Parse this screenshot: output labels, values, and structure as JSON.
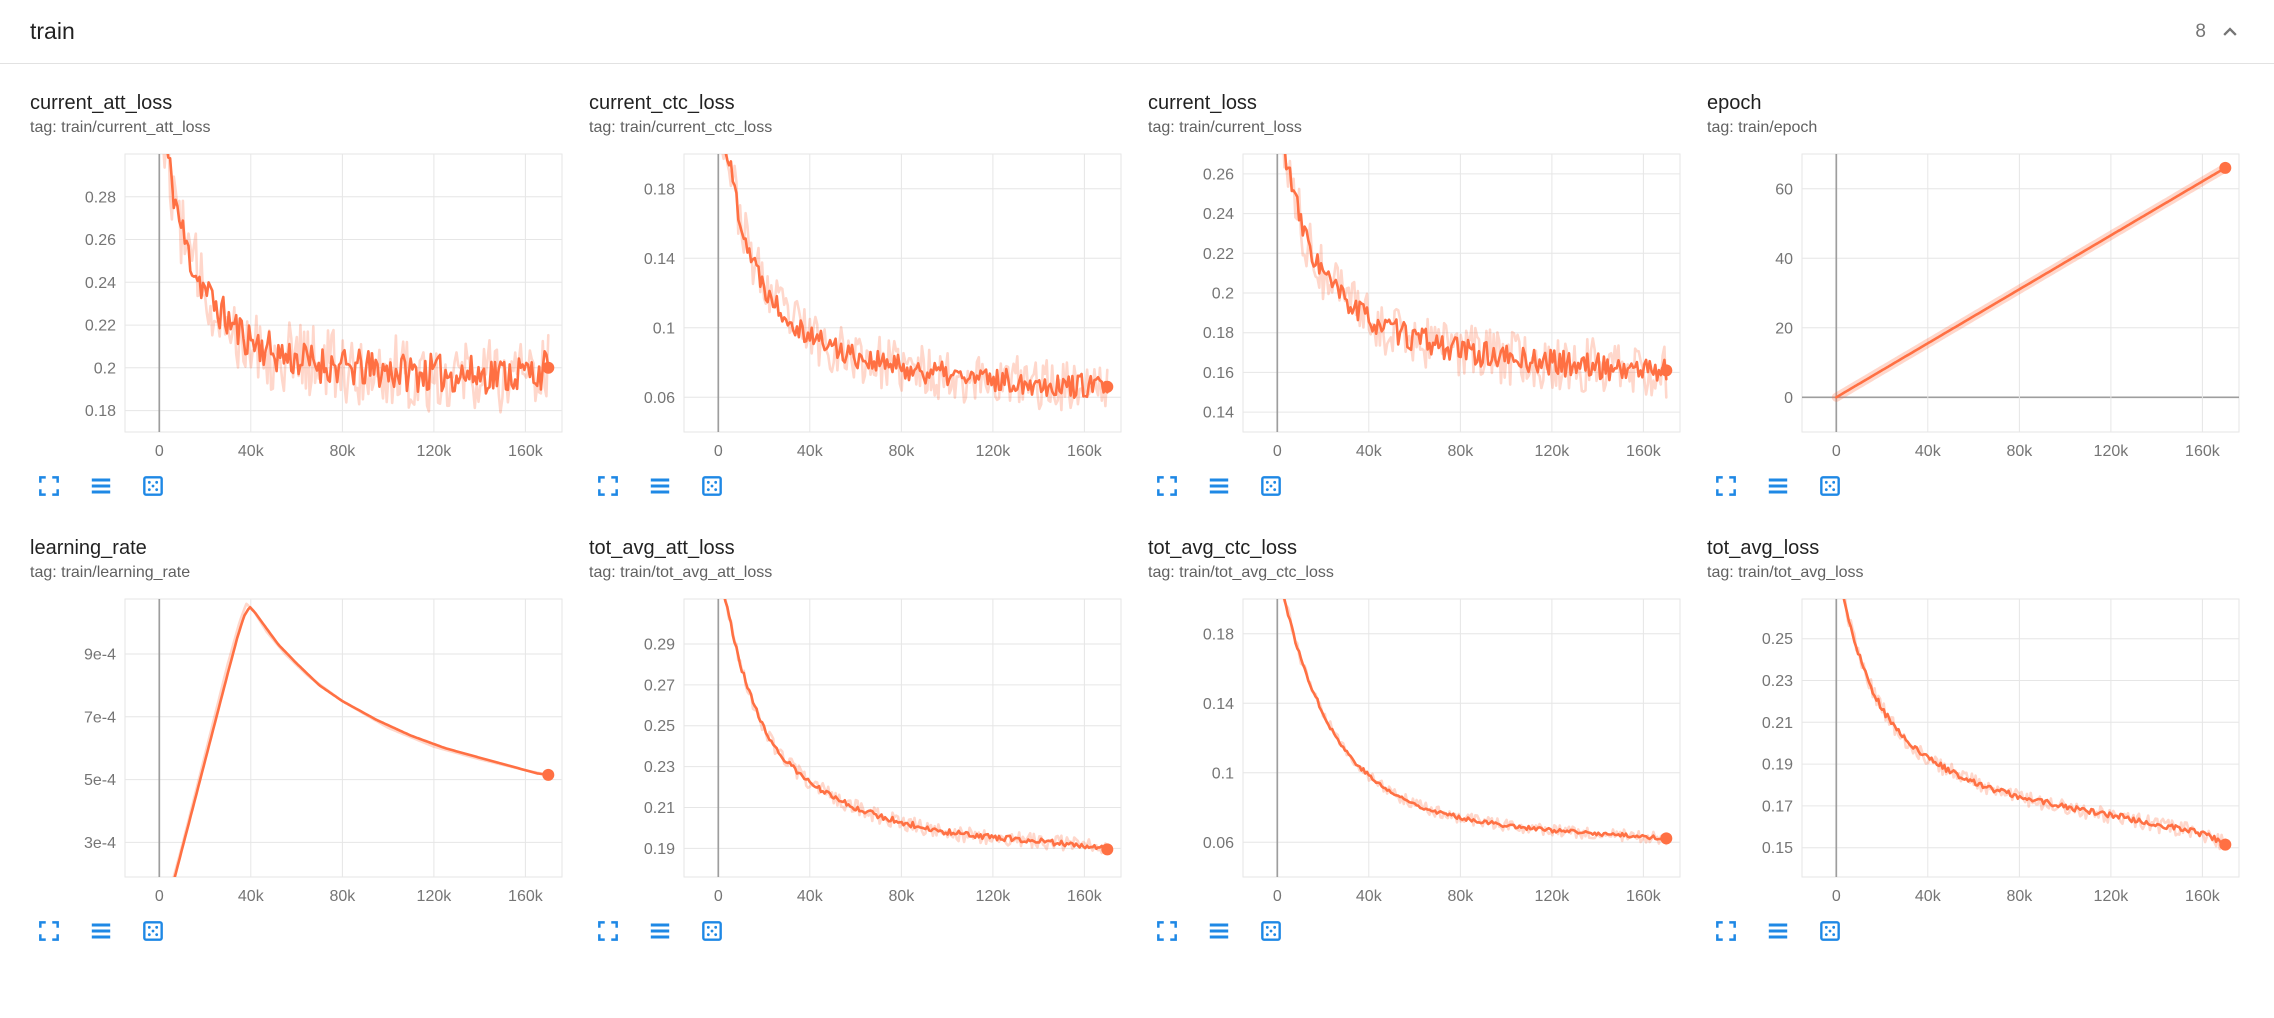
{
  "header": {
    "title": "train",
    "count": "8"
  },
  "colors": {
    "line": "#ff7043",
    "raw_opacity": 0.28,
    "icon_blue": "#1e88e5",
    "grid": "#e6e6e6",
    "zero_line": "#9e9e9e",
    "axis_text": "#757575"
  },
  "toolbar": {
    "expand_name": "expand-chart",
    "lines_name": "toggle-y-axis",
    "fit_name": "fit-domain-to-data"
  },
  "chart_data": [
    {
      "type": "line",
      "title": "current_att_loss",
      "tag_label": "tag: train/current_att_loss",
      "x_domain": [
        -15000,
        176000
      ],
      "y_domain": [
        0.17,
        0.3
      ],
      "x_tick_values": [
        0,
        40000,
        80000,
        120000,
        160000
      ],
      "x_tick_labels": [
        "0",
        "40k",
        "80k",
        "120k",
        "160k"
      ],
      "y_tick_values": [
        0.18,
        0.2,
        0.22,
        0.24,
        0.26,
        0.28
      ],
      "y_tick_labels": [
        "0.18",
        "0.2",
        "0.22",
        "0.24",
        "0.26",
        "0.28"
      ],
      "trend": [
        [
          1500,
          0.315
        ],
        [
          4000,
          0.296
        ],
        [
          6000,
          0.284
        ],
        [
          9000,
          0.268
        ],
        [
          12000,
          0.256
        ],
        [
          15000,
          0.247
        ],
        [
          18000,
          0.24
        ],
        [
          22000,
          0.233
        ],
        [
          26000,
          0.227
        ],
        [
          30000,
          0.222
        ],
        [
          35000,
          0.217
        ],
        [
          40000,
          0.213
        ],
        [
          50000,
          0.207
        ],
        [
          60000,
          0.204
        ],
        [
          70000,
          0.202
        ],
        [
          80000,
          0.2
        ],
        [
          95000,
          0.199
        ],
        [
          110000,
          0.198
        ],
        [
          130000,
          0.197
        ],
        [
          150000,
          0.197
        ],
        [
          165000,
          0.198
        ],
        [
          170000,
          0.2
        ]
      ],
      "noise": 0.009,
      "raw_noise": 0.018,
      "seed": 11,
      "end_dot": true
    },
    {
      "type": "line",
      "title": "current_ctc_loss",
      "tag_label": "tag: train/current_ctc_loss",
      "x_domain": [
        -15000,
        176000
      ],
      "y_domain": [
        0.04,
        0.2
      ],
      "x_tick_values": [
        0,
        40000,
        80000,
        120000,
        160000
      ],
      "x_tick_labels": [
        "0",
        "40k",
        "80k",
        "120k",
        "160k"
      ],
      "y_tick_values": [
        0.06,
        0.1,
        0.14,
        0.18
      ],
      "y_tick_labels": [
        "0.06",
        "0.1",
        "0.14",
        "0.18"
      ],
      "trend": [
        [
          1500,
          0.215
        ],
        [
          4000,
          0.2
        ],
        [
          6000,
          0.187
        ],
        [
          9000,
          0.167
        ],
        [
          12000,
          0.151
        ],
        [
          15000,
          0.139
        ],
        [
          18000,
          0.13
        ],
        [
          22000,
          0.12
        ],
        [
          26000,
          0.113
        ],
        [
          30000,
          0.107
        ],
        [
          35000,
          0.101
        ],
        [
          40000,
          0.096
        ],
        [
          50000,
          0.089
        ],
        [
          60000,
          0.084
        ],
        [
          70000,
          0.08
        ],
        [
          80000,
          0.077
        ],
        [
          95000,
          0.074
        ],
        [
          110000,
          0.071
        ],
        [
          130000,
          0.069
        ],
        [
          150000,
          0.067
        ],
        [
          170000,
          0.066
        ]
      ],
      "noise": 0.007,
      "raw_noise": 0.015,
      "seed": 22,
      "end_dot": true
    },
    {
      "type": "line",
      "title": "current_loss",
      "tag_label": "tag: train/current_loss",
      "x_domain": [
        -15000,
        176000
      ],
      "y_domain": [
        0.13,
        0.27
      ],
      "x_tick_values": [
        0,
        40000,
        80000,
        120000,
        160000
      ],
      "x_tick_labels": [
        "0",
        "40k",
        "80k",
        "120k",
        "160k"
      ],
      "y_tick_values": [
        0.14,
        0.16,
        0.18,
        0.2,
        0.22,
        0.24,
        0.26
      ],
      "y_tick_labels": [
        "0.14",
        "0.16",
        "0.18",
        "0.2",
        "0.22",
        "0.24",
        "0.26"
      ],
      "trend": [
        [
          1500,
          0.285
        ],
        [
          4000,
          0.268
        ],
        [
          6000,
          0.256
        ],
        [
          9000,
          0.241
        ],
        [
          12000,
          0.229
        ],
        [
          15000,
          0.221
        ],
        [
          18000,
          0.214
        ],
        [
          22000,
          0.207
        ],
        [
          26000,
          0.201
        ],
        [
          30000,
          0.196
        ],
        [
          35000,
          0.191
        ],
        [
          40000,
          0.187
        ],
        [
          50000,
          0.181
        ],
        [
          60000,
          0.177
        ],
        [
          70000,
          0.174
        ],
        [
          80000,
          0.171
        ],
        [
          95000,
          0.168
        ],
        [
          110000,
          0.166
        ],
        [
          130000,
          0.164
        ],
        [
          150000,
          0.162
        ],
        [
          170000,
          0.161
        ]
      ],
      "noise": 0.0065,
      "raw_noise": 0.014,
      "seed": 33,
      "end_dot": true
    },
    {
      "type": "line",
      "title": "epoch",
      "tag_label": "tag: train/epoch",
      "x_domain": [
        -15000,
        176000
      ],
      "y_domain": [
        -10,
        70
      ],
      "x_tick_values": [
        0,
        40000,
        80000,
        120000,
        160000
      ],
      "x_tick_labels": [
        "0",
        "40k",
        "80k",
        "120k",
        "160k"
      ],
      "y_tick_values": [
        0,
        20,
        40,
        60
      ],
      "y_tick_labels": [
        "0",
        "20",
        "40",
        "60"
      ],
      "trend": [
        [
          0,
          0
        ],
        [
          170000,
          66
        ]
      ],
      "noise": 0,
      "raw_noise": 0,
      "raw_width": 9,
      "seed": 44,
      "end_dot": true
    },
    {
      "type": "line",
      "title": "learning_rate",
      "tag_label": "tag: train/learning_rate",
      "x_domain": [
        -15000,
        176000
      ],
      "y_domain": [
        0.00019,
        0.001075
      ],
      "x_tick_values": [
        0,
        40000,
        80000,
        120000,
        160000
      ],
      "x_tick_labels": [
        "0",
        "40k",
        "80k",
        "120k",
        "160k"
      ],
      "y_tick_values": [
        0.0003,
        0.0005,
        0.0007,
        0.0009
      ],
      "y_tick_labels": [
        "3e-4",
        "5e-4",
        "7e-4",
        "9e-4"
      ],
      "trend": [
        [
          0,
          2e-05
        ],
        [
          5000,
          0.00014
        ],
        [
          10000,
          0.00028
        ],
        [
          15000,
          0.00042
        ],
        [
          20000,
          0.00056
        ],
        [
          25000,
          0.0007
        ],
        [
          30000,
          0.00084
        ],
        [
          34000,
          0.00095
        ],
        [
          37000,
          0.00102
        ],
        [
          39500,
          0.00105
        ],
        [
          42000,
          0.00103
        ],
        [
          46000,
          0.00099
        ],
        [
          52000,
          0.00093
        ],
        [
          60000,
          0.00087
        ],
        [
          70000,
          0.0008
        ],
        [
          80000,
          0.00075
        ],
        [
          95000,
          0.00069
        ],
        [
          110000,
          0.00064
        ],
        [
          125000,
          0.0006
        ],
        [
          140000,
          0.00057
        ],
        [
          155000,
          0.00054
        ],
        [
          165000,
          0.00052
        ],
        [
          170000,
          0.000515
        ]
      ],
      "raw_trend": [
        [
          0,
          2e-05
        ],
        [
          10000,
          0.00029
        ],
        [
          20000,
          0.00058
        ],
        [
          30000,
          0.00087
        ],
        [
          35000,
          0.001
        ],
        [
          38000,
          0.00106
        ],
        [
          41000,
          0.00104
        ],
        [
          47000,
          0.00097
        ],
        [
          55000,
          0.0009
        ],
        [
          65000,
          0.00083
        ],
        [
          80000,
          0.00075
        ],
        [
          100000,
          0.000665
        ],
        [
          120000,
          0.000605
        ],
        [
          140000,
          0.000565
        ],
        [
          160000,
          0.00053
        ],
        [
          170000,
          0.000515
        ]
      ],
      "noise": 0,
      "raw_noise": 0,
      "seed": 55,
      "end_dot": true
    },
    {
      "type": "line",
      "title": "tot_avg_att_loss",
      "tag_label": "tag: train/tot_avg_att_loss",
      "x_domain": [
        -15000,
        176000
      ],
      "y_domain": [
        0.176,
        0.312
      ],
      "x_tick_values": [
        0,
        40000,
        80000,
        120000,
        160000
      ],
      "x_tick_labels": [
        "0",
        "40k",
        "80k",
        "120k",
        "160k"
      ],
      "y_tick_values": [
        0.19,
        0.21,
        0.23,
        0.25,
        0.27,
        0.29
      ],
      "y_tick_labels": [
        "0.19",
        "0.21",
        "0.23",
        "0.25",
        "0.27",
        "0.29"
      ],
      "trend": [
        [
          1500,
          0.32
        ],
        [
          4000,
          0.307
        ],
        [
          6000,
          0.297
        ],
        [
          8000,
          0.288
        ],
        [
          10000,
          0.279
        ],
        [
          12000,
          0.271
        ],
        [
          14000,
          0.265
        ],
        [
          16000,
          0.259
        ],
        [
          18000,
          0.254
        ],
        [
          20000,
          0.249
        ],
        [
          23000,
          0.243
        ],
        [
          26000,
          0.238
        ],
        [
          30000,
          0.232
        ],
        [
          34000,
          0.228
        ],
        [
          38000,
          0.224
        ],
        [
          42000,
          0.221
        ],
        [
          46000,
          0.218
        ],
        [
          50000,
          0.215
        ],
        [
          55000,
          0.2125
        ],
        [
          60000,
          0.21
        ],
        [
          65000,
          0.208
        ],
        [
          70000,
          0.206
        ],
        [
          75000,
          0.2045
        ],
        [
          80000,
          0.203
        ],
        [
          85000,
          0.2015
        ],
        [
          90000,
          0.2
        ],
        [
          95000,
          0.199
        ],
        [
          100000,
          0.198
        ],
        [
          110000,
          0.1965
        ],
        [
          120000,
          0.1955
        ],
        [
          130000,
          0.1945
        ],
        [
          140000,
          0.1935
        ],
        [
          150000,
          0.1925
        ],
        [
          160000,
          0.1915
        ],
        [
          165000,
          0.191
        ],
        [
          170000,
          0.1895
        ]
      ],
      "noise": 0.0014,
      "raw_noise": 0.0038,
      "seed": 66,
      "end_dot": true
    },
    {
      "type": "line",
      "title": "tot_avg_ctc_loss",
      "tag_label": "tag: train/tot_avg_ctc_loss",
      "x_domain": [
        -15000,
        176000
      ],
      "y_domain": [
        0.04,
        0.2
      ],
      "x_tick_values": [
        0,
        40000,
        80000,
        120000,
        160000
      ],
      "x_tick_labels": [
        "0",
        "40k",
        "80k",
        "120k",
        "160k"
      ],
      "y_tick_values": [
        0.06,
        0.1,
        0.14,
        0.18
      ],
      "y_tick_labels": [
        "0.06",
        "0.1",
        "0.14",
        "0.18"
      ],
      "trend": [
        [
          1500,
          0.21
        ],
        [
          3000,
          0.2
        ],
        [
          5000,
          0.19
        ],
        [
          7000,
          0.18
        ],
        [
          9000,
          0.171
        ],
        [
          11000,
          0.163
        ],
        [
          13000,
          0.156
        ],
        [
          15000,
          0.149
        ],
        [
          17000,
          0.143
        ],
        [
          19000,
          0.137
        ],
        [
          22000,
          0.129
        ],
        [
          25000,
          0.122
        ],
        [
          28000,
          0.116
        ],
        [
          31000,
          0.111
        ],
        [
          34000,
          0.106
        ],
        [
          38000,
          0.101
        ],
        [
          42000,
          0.096
        ],
        [
          46000,
          0.092
        ],
        [
          50000,
          0.0885
        ],
        [
          55000,
          0.085
        ],
        [
          60000,
          0.082
        ],
        [
          65000,
          0.0795
        ],
        [
          70000,
          0.0775
        ],
        [
          75000,
          0.0758
        ],
        [
          80000,
          0.0743
        ],
        [
          88000,
          0.0722
        ],
        [
          96000,
          0.0705
        ],
        [
          105000,
          0.069
        ],
        [
          115000,
          0.0675
        ],
        [
          125000,
          0.0663
        ],
        [
          135000,
          0.0653
        ],
        [
          148000,
          0.0643
        ],
        [
          160000,
          0.0633
        ],
        [
          170000,
          0.0622
        ]
      ],
      "noise": 0.0012,
      "raw_noise": 0.0033,
      "seed": 77,
      "end_dot": true
    },
    {
      "type": "line",
      "title": "tot_avg_loss",
      "tag_label": "tag: train/tot_avg_loss",
      "x_domain": [
        -15000,
        176000
      ],
      "y_domain": [
        0.136,
        0.269
      ],
      "x_tick_values": [
        0,
        40000,
        80000,
        120000,
        160000
      ],
      "x_tick_labels": [
        "0",
        "40k",
        "80k",
        "120k",
        "160k"
      ],
      "y_tick_values": [
        0.15,
        0.17,
        0.19,
        0.21,
        0.23,
        0.25
      ],
      "y_tick_labels": [
        "0.15",
        "0.17",
        "0.19",
        "0.21",
        "0.23",
        "0.25"
      ],
      "trend": [
        [
          1500,
          0.278
        ],
        [
          4000,
          0.266
        ],
        [
          6000,
          0.257
        ],
        [
          8000,
          0.249
        ],
        [
          10000,
          0.242
        ],
        [
          12000,
          0.236
        ],
        [
          14000,
          0.23
        ],
        [
          16000,
          0.225
        ],
        [
          18000,
          0.2205
        ],
        [
          20000,
          0.2165
        ],
        [
          23000,
          0.2115
        ],
        [
          26000,
          0.207
        ],
        [
          30000,
          0.202
        ],
        [
          34000,
          0.198
        ],
        [
          38000,
          0.1945
        ],
        [
          42000,
          0.1915
        ],
        [
          46000,
          0.189
        ],
        [
          50000,
          0.1865
        ],
        [
          55000,
          0.184
        ],
        [
          60000,
          0.1815
        ],
        [
          65000,
          0.1795
        ],
        [
          70000,
          0.1775
        ],
        [
          75000,
          0.176
        ],
        [
          80000,
          0.1745
        ],
        [
          88000,
          0.1725
        ],
        [
          96000,
          0.1705
        ],
        [
          105000,
          0.1685
        ],
        [
          115000,
          0.1665
        ],
        [
          125000,
          0.1648
        ],
        [
          135000,
          0.162
        ],
        [
          145000,
          0.16
        ],
        [
          155000,
          0.158
        ],
        [
          162000,
          0.156
        ],
        [
          167000,
          0.1535
        ],
        [
          170000,
          0.1515
        ]
      ],
      "noise": 0.0014,
      "raw_noise": 0.0038,
      "seed": 88,
      "end_dot": true
    }
  ]
}
